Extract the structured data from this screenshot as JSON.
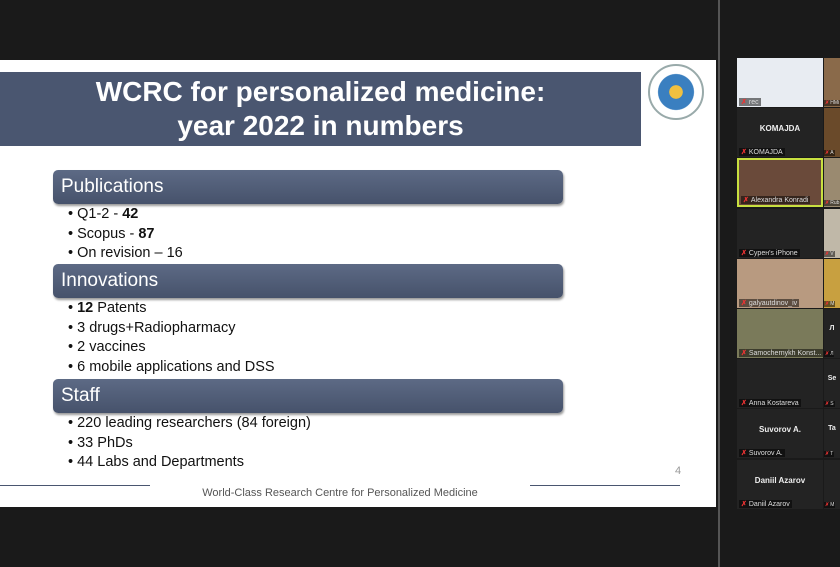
{
  "slide": {
    "title_line1": "WCRC for personalized medicine:",
    "title_line2": "year 2022 in numbers",
    "sections": [
      {
        "header": "Publications",
        "items": [
          {
            "pre": "Q1-2 - ",
            "bold": "42",
            "post": ""
          },
          {
            "pre": "Scopus - ",
            "bold": "87",
            "post": ""
          },
          {
            "pre": "On revision – 16",
            "bold": "",
            "post": ""
          }
        ]
      },
      {
        "header": "Innovations",
        "items": [
          {
            "pre": "",
            "bold": "12",
            "post": " Patents"
          },
          {
            "pre": "3 drugs+Radiopharmacy",
            "bold": "",
            "post": ""
          },
          {
            "pre": "2 vaccines",
            "bold": "",
            "post": ""
          },
          {
            "pre": "6 mobile applications and DSS",
            "bold": "",
            "post": ""
          }
        ]
      },
      {
        "header": "Staff",
        "items": [
          {
            "pre": "220 leading researchers (84 foreign)",
            "bold": "",
            "post": ""
          },
          {
            "pre": "33 PhDs",
            "bold": "",
            "post": ""
          },
          {
            "pre": "44 Labs and Departments",
            "bold": "",
            "post": ""
          }
        ]
      }
    ],
    "page_number": "4",
    "footer": "World-Class Research Centre for Personalized Medicine"
  },
  "participants": [
    {
      "name": "rec",
      "big": "",
      "video": "#e8ecf2"
    },
    {
      "name": "KOMAJDA",
      "big": "KOMAJDA",
      "video": ""
    },
    {
      "name": "Alexandra Konradi",
      "big": "",
      "video": "#6a4a3a",
      "active": true
    },
    {
      "name": "Cypeн's iPhone",
      "big": "",
      "video": ""
    },
    {
      "name": "galyautdinov_iv",
      "big": "",
      "video": "#b89a80"
    },
    {
      "name": "Samochernykh Konst...",
      "big": "",
      "video": "#7a7a5a"
    },
    {
      "name": "Anna Kostareva",
      "big": "",
      "video": ""
    },
    {
      "name": "Suvorov A.",
      "big": "Suvorov A.",
      "video": ""
    },
    {
      "name": "Daniil Azarov",
      "big": "Daniil Azarov",
      "video": ""
    }
  ],
  "participants_col2": [
    {
      "name": "HMi",
      "big": "",
      "video": "#8a6a4a"
    },
    {
      "name": "A",
      "big": "",
      "video": "#6a4a2a"
    },
    {
      "name": "Rub",
      "big": "",
      "video": "#9a8a70"
    },
    {
      "name": "V",
      "big": "",
      "video": "#c0b8a8"
    },
    {
      "name": "M",
      "big": "",
      "video": "#c8a040"
    },
    {
      "name": "Л",
      "big": "Л",
      "video": ""
    },
    {
      "name": "S",
      "big": "Se",
      "video": ""
    },
    {
      "name": "T",
      "big": "Ta",
      "video": ""
    },
    {
      "name": "M",
      "big": "",
      "video": ""
    }
  ]
}
